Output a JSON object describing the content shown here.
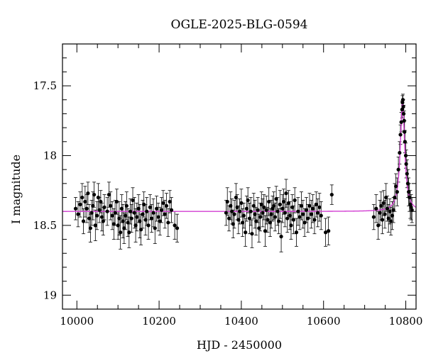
{
  "chart_data": {
    "type": "scatter",
    "title": "OGLE-2025-BLG-0594",
    "xlabel": "HJD - 2450000",
    "ylabel": "I magnitude",
    "xlim": [
      9965,
      10825
    ],
    "ylim": [
      19.1,
      17.2
    ],
    "y_inverted": true,
    "grid": false,
    "x_major_ticks": [
      10000,
      10200,
      10400,
      10600,
      10800
    ],
    "x_tick_labels": [
      "10000",
      "10200",
      "10400",
      "10600",
      "10800"
    ],
    "y_major_ticks": [
      17.5,
      18,
      18.5,
      19
    ],
    "y_tick_labels": [
      "17.5",
      "18",
      "18.5",
      "19"
    ],
    "baseline_mag": 18.4,
    "model": {
      "color": "#d23fd2",
      "t0": 10792,
      "baseline": 18.4,
      "peak_mag": 17.62,
      "peak_width_days": 6.5,
      "x_range": [
        9965,
        10825
      ]
    },
    "point_color": "#000000",
    "points": [
      [
        9997,
        18.38,
        0.08
      ],
      [
        10003,
        18.42,
        0.09
      ],
      [
        10008,
        18.35,
        0.09
      ],
      [
        10013,
        18.3,
        0.1
      ],
      [
        10016,
        18.47,
        0.09
      ],
      [
        10020,
        18.33,
        0.11
      ],
      [
        10024,
        18.38,
        0.1
      ],
      [
        10027,
        18.27,
        0.08
      ],
      [
        10030,
        18.45,
        0.1
      ],
      [
        10033,
        18.52,
        0.1
      ],
      [
        10036,
        18.41,
        0.09
      ],
      [
        10039,
        18.36,
        0.1
      ],
      [
        10042,
        18.28,
        0.09
      ],
      [
        10045,
        18.5,
        0.11
      ],
      [
        10049,
        18.43,
        0.1
      ],
      [
        10052,
        18.3,
        0.1
      ],
      [
        10055,
        18.39,
        0.09
      ],
      [
        10058,
        18.33,
        0.08
      ],
      [
        10061,
        18.44,
        0.1
      ],
      [
        10064,
        18.47,
        0.1
      ],
      [
        10067,
        18.37,
        0.09
      ],
      [
        10074,
        18.4,
        0.1
      ],
      [
        10078,
        18.28,
        0.09
      ],
      [
        10082,
        18.36,
        0.1
      ],
      [
        10086,
        18.43,
        0.1
      ],
      [
        10090,
        18.49,
        0.11
      ],
      [
        10093,
        18.41,
        0.09
      ],
      [
        10097,
        18.33,
        0.09
      ],
      [
        10100,
        18.5,
        0.1
      ],
      [
        10103,
        18.45,
        0.12
      ],
      [
        10106,
        18.55,
        0.12
      ],
      [
        10109,
        18.38,
        0.1
      ],
      [
        10112,
        18.47,
        0.12
      ],
      [
        10115,
        18.52,
        0.11
      ],
      [
        10118,
        18.43,
        0.1
      ],
      [
        10121,
        18.36,
        0.1
      ],
      [
        10124,
        18.48,
        0.1
      ],
      [
        10127,
        18.55,
        0.11
      ],
      [
        10130,
        18.4,
        0.09
      ],
      [
        10133,
        18.45,
        0.1
      ],
      [
        10136,
        18.32,
        0.09
      ],
      [
        10140,
        18.41,
        0.11
      ],
      [
        10143,
        18.5,
        0.12
      ],
      [
        10146,
        18.44,
        0.1
      ],
      [
        10150,
        18.38,
        0.1
      ],
      [
        10153,
        18.47,
        0.12
      ],
      [
        10156,
        18.53,
        0.11
      ],
      [
        10160,
        18.42,
        0.1
      ],
      [
        10163,
        18.35,
        0.09
      ],
      [
        10167,
        18.46,
        0.11
      ],
      [
        10170,
        18.4,
        0.1
      ],
      [
        10174,
        18.5,
        0.1
      ],
      [
        10178,
        18.37,
        0.09
      ],
      [
        10182,
        18.45,
        0.1
      ],
      [
        10186,
        18.41,
        0.1
      ],
      [
        10190,
        18.52,
        0.11
      ],
      [
        10194,
        18.38,
        0.09
      ],
      [
        10198,
        18.44,
        0.1
      ],
      [
        10202,
        18.47,
        0.1
      ],
      [
        10206,
        18.39,
        0.09
      ],
      [
        10210,
        18.34,
        0.09
      ],
      [
        10214,
        18.42,
        0.1
      ],
      [
        10218,
        18.36,
        0.09
      ],
      [
        10222,
        18.48,
        0.1
      ],
      [
        10226,
        18.33,
        0.08
      ],
      [
        10230,
        18.39,
        0.09
      ],
      [
        10238,
        18.5,
        0.1
      ],
      [
        10244,
        18.52,
        0.1
      ],
      [
        10363,
        18.41,
        0.09
      ],
      [
        10366,
        18.33,
        0.1
      ],
      [
        10370,
        18.45,
        0.09
      ],
      [
        10374,
        18.36,
        0.1
      ],
      [
        10377,
        18.4,
        0.09
      ],
      [
        10380,
        18.49,
        0.1
      ],
      [
        10383,
        18.42,
        0.1
      ],
      [
        10387,
        18.3,
        0.1
      ],
      [
        10390,
        18.37,
        0.09
      ],
      [
        10393,
        18.46,
        0.1
      ],
      [
        10396,
        18.4,
        0.09
      ],
      [
        10400,
        18.34,
        0.1
      ],
      [
        10403,
        18.48,
        0.1
      ],
      [
        10406,
        18.43,
        0.09
      ],
      [
        10410,
        18.55,
        0.1
      ],
      [
        10413,
        18.38,
        0.09
      ],
      [
        10416,
        18.32,
        0.09
      ],
      [
        10420,
        18.45,
        0.11
      ],
      [
        10423,
        18.4,
        0.1
      ],
      [
        10426,
        18.56,
        0.1
      ],
      [
        10430,
        18.36,
        0.09
      ],
      [
        10433,
        18.42,
        0.1
      ],
      [
        10436,
        18.47,
        0.1
      ],
      [
        10440,
        18.39,
        0.09
      ],
      [
        10443,
        18.52,
        0.1
      ],
      [
        10446,
        18.44,
        0.1
      ],
      [
        10449,
        18.35,
        0.09
      ],
      [
        10452,
        18.41,
        0.1
      ],
      [
        10455,
        18.37,
        0.09
      ],
      [
        10458,
        18.54,
        0.11
      ],
      [
        10461,
        18.39,
        0.1
      ],
      [
        10464,
        18.46,
        0.09
      ],
      [
        10467,
        18.33,
        0.1
      ],
      [
        10470,
        18.48,
        0.1
      ],
      [
        10473,
        18.42,
        0.1
      ],
      [
        10476,
        18.38,
        0.09
      ],
      [
        10479,
        18.36,
        0.1
      ],
      [
        10482,
        18.44,
        0.1
      ],
      [
        10485,
        18.31,
        0.09
      ],
      [
        10488,
        18.4,
        0.1
      ],
      [
        10491,
        18.47,
        0.09
      ],
      [
        10494,
        18.35,
        0.1
      ],
      [
        10497,
        18.58,
        0.11
      ],
      [
        10500,
        18.38,
        0.1
      ],
      [
        10503,
        18.33,
        0.09
      ],
      [
        10506,
        18.41,
        0.1
      ],
      [
        10509,
        18.27,
        0.1
      ],
      [
        10512,
        18.45,
        0.1
      ],
      [
        10515,
        18.34,
        0.09
      ],
      [
        10518,
        18.43,
        0.1
      ],
      [
        10521,
        18.5,
        0.1
      ],
      [
        10524,
        18.37,
        0.09
      ],
      [
        10527,
        18.46,
        0.1
      ],
      [
        10530,
        18.32,
        0.09
      ],
      [
        10534,
        18.55,
        0.1
      ],
      [
        10538,
        18.4,
        0.1
      ],
      [
        10542,
        18.44,
        0.09
      ],
      [
        10546,
        18.36,
        0.1
      ],
      [
        10550,
        18.42,
        0.1
      ],
      [
        10554,
        18.48,
        0.1
      ],
      [
        10558,
        18.39,
        0.09
      ],
      [
        10562,
        18.45,
        0.1
      ],
      [
        10566,
        18.36,
        0.09
      ],
      [
        10570,
        18.42,
        0.1
      ],
      [
        10574,
        18.38,
        0.1
      ],
      [
        10578,
        18.46,
        0.1
      ],
      [
        10582,
        18.35,
        0.09
      ],
      [
        10586,
        18.41,
        0.1
      ],
      [
        10590,
        18.37,
        0.1
      ],
      [
        10594,
        18.43,
        0.1
      ],
      [
        10605,
        18.55,
        0.1
      ],
      [
        10612,
        18.54,
        0.1
      ],
      [
        10620,
        18.28,
        0.07
      ],
      [
        10722,
        18.44,
        0.09
      ],
      [
        10728,
        18.38,
        0.1
      ],
      [
        10733,
        18.5,
        0.1
      ],
      [
        10737,
        18.41,
        0.09
      ],
      [
        10740,
        18.36,
        0.1
      ],
      [
        10743,
        18.46,
        0.1
      ],
      [
        10746,
        18.34,
        0.09
      ],
      [
        10749,
        18.42,
        0.1
      ],
      [
        10752,
        18.3,
        0.1
      ],
      [
        10755,
        18.38,
        0.09
      ],
      [
        10758,
        18.45,
        0.1
      ],
      [
        10761,
        18.4,
        0.09
      ],
      [
        10764,
        18.47,
        0.1
      ],
      [
        10767,
        18.43,
        0.1
      ],
      [
        10770,
        18.39,
        0.09
      ],
      [
        10773,
        18.3,
        0.1
      ],
      [
        10776,
        18.22,
        0.09
      ],
      [
        10779,
        18.26,
        0.1
      ],
      [
        10782,
        18.1,
        0.09
      ],
      [
        10785,
        17.98,
        0.08
      ],
      [
        10787,
        17.85,
        0.07
      ],
      [
        10789,
        17.76,
        0.07
      ],
      [
        10791,
        17.67,
        0.06
      ],
      [
        10792,
        17.62,
        0.05
      ],
      [
        10793,
        17.6,
        0.04
      ],
      [
        10794,
        17.65,
        0.05
      ],
      [
        10795,
        17.7,
        0.06
      ],
      [
        10796,
        17.75,
        0.07
      ],
      [
        10797,
        17.83,
        0.08
      ],
      [
        10798,
        17.9,
        0.08
      ],
      [
        10800,
        18.0,
        0.09
      ],
      [
        10801,
        18.06,
        0.1
      ],
      [
        10803,
        18.13,
        0.1
      ],
      [
        10805,
        18.2,
        0.1
      ],
      [
        10807,
        18.26,
        0.1
      ],
      [
        10809,
        18.3,
        0.1
      ],
      [
        10811,
        18.35,
        0.1
      ],
      [
        10813,
        18.37,
        0.09
      ],
      [
        10815,
        18.39,
        0.09
      ]
    ]
  }
}
